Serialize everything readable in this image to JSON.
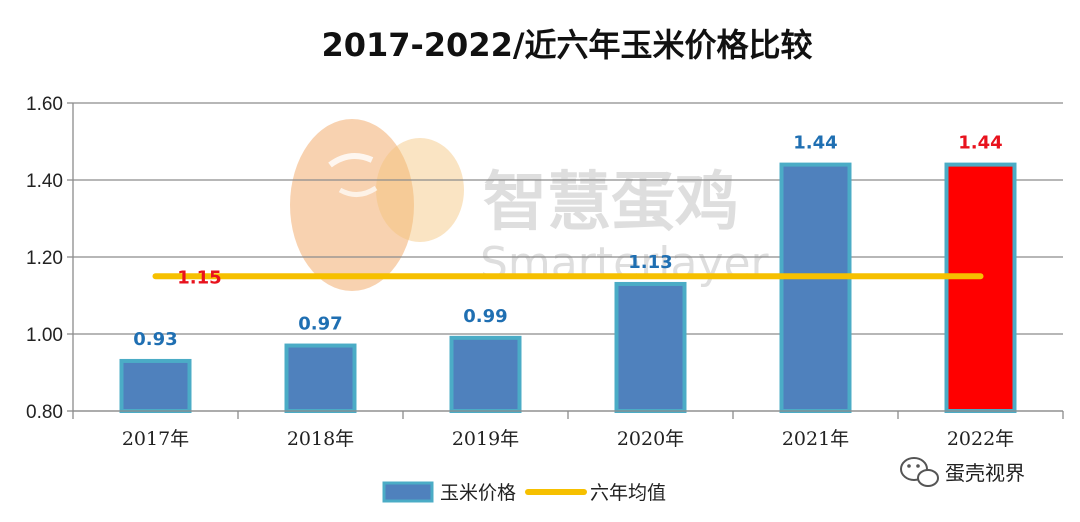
{
  "chart_data": {
    "type": "bar",
    "title": "2017-2022/近六年玉米价格比较",
    "categories": [
      "2017年",
      "2018年",
      "2019年",
      "2020年",
      "2021年",
      "2022年"
    ],
    "series": [
      {
        "name": "玉米价格",
        "values": [
          0.93,
          0.97,
          0.99,
          1.13,
          1.44,
          1.44
        ],
        "data_labels": [
          "0.93",
          "0.97",
          "0.99",
          "1.13",
          "1.44",
          "1.44"
        ],
        "color": "#4f81bd",
        "border_color": "#4bacc6",
        "highlight_index": 5,
        "highlight_color": "#ff0000",
        "label_color": "#1f6fb2",
        "highlight_label_color": "#e8121d"
      },
      {
        "name": "六年均值",
        "type": "line",
        "value": 1.15,
        "data_label": "1.15",
        "color": "#f6c000",
        "label_color": "#e8121d"
      }
    ],
    "ylim": [
      0.8,
      1.6
    ],
    "yticks": [
      "0.80",
      "1.00",
      "1.20",
      "1.40",
      "1.60"
    ],
    "grid": true,
    "legend_position": "bottom"
  },
  "watermark": {
    "chinese_text": "智慧蛋鸡",
    "english_text": "Smarterlayer",
    "logo_color": "#f0a868"
  },
  "source_badge": {
    "icon": "wechat-icon",
    "text": "蛋壳视界"
  }
}
